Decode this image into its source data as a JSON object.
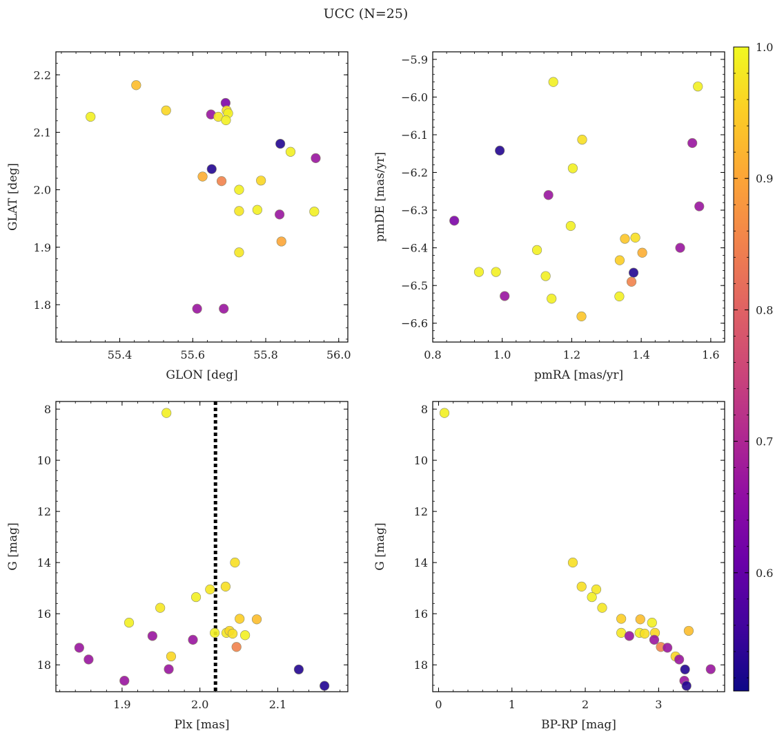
{
  "figure": {
    "suptitle": "UCC (N=25)"
  },
  "colorbar": {
    "range": [
      0.51,
      1.0
    ],
    "colormap": "plasma",
    "ticks": [
      0.6,
      0.7,
      0.8,
      0.9,
      1.0
    ],
    "tick_labels": [
      "0.6",
      "0.7",
      "0.8",
      "0.9",
      "1.0"
    ]
  },
  "chart_data": [
    {
      "type": "scatter",
      "xlabel": "GLON [deg]",
      "ylabel": "GLAT [deg]",
      "xlim": [
        55.225,
        56.025
      ],
      "ylim": [
        1.735,
        2.24
      ],
      "y_inverted": false,
      "xticks": [
        55.4,
        55.6,
        55.8,
        56.0
      ],
      "xtick_labels": [
        "55.4",
        "55.6",
        "55.8",
        "56.0"
      ],
      "yticks": [
        1.8,
        1.9,
        2.0,
        2.1,
        2.2
      ],
      "ytick_labels": [
        "1.8",
        "1.9",
        "2.0",
        "2.1",
        "2.2"
      ],
      "points": [
        {
          "x": 55.32,
          "y": 2.127,
          "c": 0.99
        },
        {
          "x": 55.445,
          "y": 2.182,
          "c": 0.93
        },
        {
          "x": 55.527,
          "y": 2.138,
          "c": 0.96
        },
        {
          "x": 55.65,
          "y": 2.131,
          "c": 0.67
        },
        {
          "x": 55.67,
          "y": 2.127,
          "c": 0.98
        },
        {
          "x": 55.69,
          "y": 2.151,
          "c": 0.63
        },
        {
          "x": 55.693,
          "y": 2.138,
          "c": 0.97
        },
        {
          "x": 55.697,
          "y": 2.133,
          "c": 0.99
        },
        {
          "x": 55.691,
          "y": 2.121,
          "c": 0.99
        },
        {
          "x": 55.652,
          "y": 2.036,
          "c": 0.53
        },
        {
          "x": 55.627,
          "y": 2.023,
          "c": 0.91
        },
        {
          "x": 55.679,
          "y": 2.015,
          "c": 0.85
        },
        {
          "x": 55.727,
          "y": 2.0,
          "c": 0.99
        },
        {
          "x": 55.787,
          "y": 2.016,
          "c": 0.96
        },
        {
          "x": 55.84,
          "y": 2.08,
          "c": 0.53
        },
        {
          "x": 55.868,
          "y": 2.066,
          "c": 0.99
        },
        {
          "x": 55.937,
          "y": 2.055,
          "c": 0.67
        },
        {
          "x": 55.727,
          "y": 1.963,
          "c": 0.98
        },
        {
          "x": 55.777,
          "y": 1.965,
          "c": 0.99
        },
        {
          "x": 55.838,
          "y": 1.957,
          "c": 0.67
        },
        {
          "x": 55.933,
          "y": 1.962,
          "c": 0.99
        },
        {
          "x": 55.843,
          "y": 1.91,
          "c": 0.9
        },
        {
          "x": 55.727,
          "y": 1.891,
          "c": 0.98
        },
        {
          "x": 55.612,
          "y": 1.793,
          "c": 0.67
        },
        {
          "x": 55.685,
          "y": 1.793,
          "c": 0.67
        }
      ]
    },
    {
      "type": "scatter",
      "xlabel": "pmRA [mas/yr]",
      "ylabel": "pmDE [mas/yr]",
      "xlim": [
        0.8,
        1.64
      ],
      "ylim": [
        -6.65,
        -5.88
      ],
      "y_inverted": false,
      "xticks": [
        0.8,
        1.0,
        1.2,
        1.4,
        1.6
      ],
      "xtick_labels": [
        "0.8",
        "1.0",
        "1.2",
        "1.4",
        "1.6"
      ],
      "yticks": [
        -6.6,
        -6.5,
        -6.4,
        -6.3,
        -6.2,
        -6.1,
        -6.0,
        -5.9
      ],
      "ytick_labels": [
        "−6.6",
        "−6.5",
        "−6.4",
        "−6.3",
        "−6.2",
        "−6.1",
        "−6.0",
        "−5.9"
      ],
      "points": [
        {
          "x": 1.147,
          "y": -5.96,
          "c": 0.99
        },
        {
          "x": 1.563,
          "y": -5.972,
          "c": 0.99
        },
        {
          "x": 0.993,
          "y": -6.142,
          "c": 0.53
        },
        {
          "x": 1.23,
          "y": -6.113,
          "c": 0.97
        },
        {
          "x": 1.203,
          "y": -6.189,
          "c": 0.99
        },
        {
          "x": 1.547,
          "y": -6.122,
          "c": 0.67
        },
        {
          "x": 1.133,
          "y": -6.26,
          "c": 0.67
        },
        {
          "x": 1.567,
          "y": -6.29,
          "c": 0.67
        },
        {
          "x": 0.862,
          "y": -6.328,
          "c": 0.63
        },
        {
          "x": 1.197,
          "y": -6.342,
          "c": 0.99
        },
        {
          "x": 1.1,
          "y": -6.406,
          "c": 0.99
        },
        {
          "x": 1.353,
          "y": -6.376,
          "c": 0.94
        },
        {
          "x": 1.383,
          "y": -6.373,
          "c": 0.97
        },
        {
          "x": 1.403,
          "y": -6.413,
          "c": 0.91
        },
        {
          "x": 1.512,
          "y": -6.4,
          "c": 0.67
        },
        {
          "x": 1.338,
          "y": -6.433,
          "c": 0.95
        },
        {
          "x": 0.933,
          "y": -6.464,
          "c": 0.99
        },
        {
          "x": 0.982,
          "y": -6.464,
          "c": 0.99
        },
        {
          "x": 1.125,
          "y": -6.475,
          "c": 0.99
        },
        {
          "x": 1.378,
          "y": -6.466,
          "c": 0.53
        },
        {
          "x": 1.372,
          "y": -6.49,
          "c": 0.85
        },
        {
          "x": 1.007,
          "y": -6.528,
          "c": 0.67
        },
        {
          "x": 1.142,
          "y": -6.535,
          "c": 0.99
        },
        {
          "x": 1.337,
          "y": -6.529,
          "c": 0.99
        },
        {
          "x": 1.228,
          "y": -6.582,
          "c": 0.94
        }
      ]
    },
    {
      "type": "scatter",
      "xlabel": "Plx [mas]",
      "ylabel": "G [mag]",
      "xlim": [
        1.815,
        2.19
      ],
      "ylim": [
        19.05,
        7.7
      ],
      "y_inverted": true,
      "vline": {
        "x": 2.02,
        "style": "dotted",
        "color": "#000000"
      },
      "xticks": [
        1.9,
        2.0,
        2.1
      ],
      "xtick_labels": [
        "1.9",
        "2.0",
        "2.1"
      ],
      "yticks": [
        8,
        10,
        12,
        14,
        16,
        18
      ],
      "ytick_labels": [
        "8",
        "10",
        "12",
        "14",
        "16",
        "18"
      ],
      "points": [
        {
          "x": 1.957,
          "y": 8.15,
          "c": 0.99
        },
        {
          "x": 2.045,
          "y": 14.0,
          "c": 0.97
        },
        {
          "x": 2.033,
          "y": 14.94,
          "c": 0.97
        },
        {
          "x": 2.013,
          "y": 15.05,
          "c": 0.98
        },
        {
          "x": 1.995,
          "y": 15.35,
          "c": 0.99
        },
        {
          "x": 1.949,
          "y": 15.77,
          "c": 0.98
        },
        {
          "x": 1.909,
          "y": 16.35,
          "c": 0.99
        },
        {
          "x": 2.051,
          "y": 16.2,
          "c": 0.95
        },
        {
          "x": 2.073,
          "y": 16.22,
          "c": 0.93
        },
        {
          "x": 2.019,
          "y": 16.75,
          "c": 0.99
        },
        {
          "x": 2.034,
          "y": 16.75,
          "c": 0.98
        },
        {
          "x": 2.038,
          "y": 16.67,
          "c": 0.96
        },
        {
          "x": 2.042,
          "y": 16.78,
          "c": 0.97
        },
        {
          "x": 2.058,
          "y": 16.84,
          "c": 0.99
        },
        {
          "x": 1.939,
          "y": 16.87,
          "c": 0.67
        },
        {
          "x": 1.991,
          "y": 17.02,
          "c": 0.67
        },
        {
          "x": 2.047,
          "y": 17.3,
          "c": 0.85
        },
        {
          "x": 1.845,
          "y": 17.33,
          "c": 0.67
        },
        {
          "x": 1.963,
          "y": 17.67,
          "c": 0.96
        },
        {
          "x": 1.857,
          "y": 17.79,
          "c": 0.67
        },
        {
          "x": 1.96,
          "y": 18.17,
          "c": 0.67
        },
        {
          "x": 2.127,
          "y": 18.18,
          "c": 0.53
        },
        {
          "x": 1.903,
          "y": 18.62,
          "c": 0.67
        },
        {
          "x": 2.16,
          "y": 18.82,
          "c": 0.53
        }
      ]
    },
    {
      "type": "scatter",
      "xlabel": "BP-RP [mag]",
      "ylabel": "G [mag]",
      "xlim": [
        -0.08,
        3.9
      ],
      "ylim": [
        19.05,
        7.7
      ],
      "y_inverted": true,
      "xticks": [
        0,
        1,
        2,
        3
      ],
      "xtick_labels": [
        "0",
        "1",
        "2",
        "3"
      ],
      "yticks": [
        8,
        10,
        12,
        14,
        16,
        18
      ],
      "ytick_labels": [
        "8",
        "10",
        "12",
        "14",
        "16",
        "18"
      ],
      "points": [
        {
          "x": 0.08,
          "y": 8.15,
          "c": 0.99
        },
        {
          "x": 1.83,
          "y": 14.0,
          "c": 0.97
        },
        {
          "x": 1.95,
          "y": 14.94,
          "c": 0.97
        },
        {
          "x": 2.15,
          "y": 15.05,
          "c": 0.98
        },
        {
          "x": 2.09,
          "y": 15.35,
          "c": 0.99
        },
        {
          "x": 2.23,
          "y": 15.77,
          "c": 0.98
        },
        {
          "x": 2.49,
          "y": 16.2,
          "c": 0.95
        },
        {
          "x": 2.75,
          "y": 16.22,
          "c": 0.93
        },
        {
          "x": 2.91,
          "y": 16.35,
          "c": 0.99
        },
        {
          "x": 3.41,
          "y": 16.67,
          "c": 0.93
        },
        {
          "x": 2.49,
          "y": 16.75,
          "c": 0.98
        },
        {
          "x": 2.74,
          "y": 16.75,
          "c": 0.99
        },
        {
          "x": 2.81,
          "y": 16.78,
          "c": 0.97
        },
        {
          "x": 2.95,
          "y": 16.75,
          "c": 0.96
        },
        {
          "x": 2.6,
          "y": 16.87,
          "c": 0.67
        },
        {
          "x": 2.94,
          "y": 17.02,
          "c": 0.67
        },
        {
          "x": 3.03,
          "y": 17.3,
          "c": 0.85
        },
        {
          "x": 3.12,
          "y": 17.33,
          "c": 0.67
        },
        {
          "x": 3.23,
          "y": 17.67,
          "c": 0.96
        },
        {
          "x": 3.28,
          "y": 17.79,
          "c": 0.67
        },
        {
          "x": 3.36,
          "y": 18.18,
          "c": 0.53
        },
        {
          "x": 3.71,
          "y": 18.17,
          "c": 0.67
        },
        {
          "x": 3.35,
          "y": 18.62,
          "c": 0.67
        },
        {
          "x": 3.38,
          "y": 18.82,
          "c": 0.53
        }
      ]
    }
  ]
}
